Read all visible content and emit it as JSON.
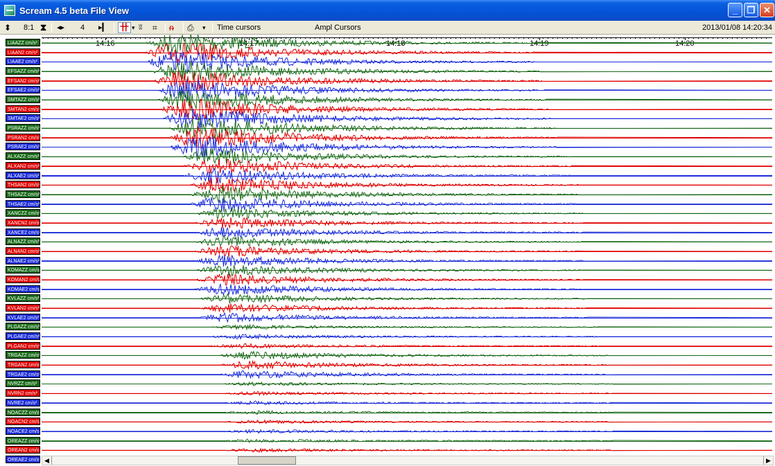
{
  "window": {
    "title": "Scream 4.5 beta File View"
  },
  "toolbar": {
    "zoom_value": "8:1",
    "step_value": "4",
    "time_cursors_label": "Time cursors",
    "ampl_cursors_label": "Ampl Cursors",
    "timestamp": "2013/01/08 14:20:34"
  },
  "time_axis": {
    "ticks": [
      "14:16",
      "14:17",
      "14:18",
      "14:19",
      "14:20"
    ]
  },
  "channels": [
    {
      "label": "LIAAZZ cm/s²",
      "color": "#1a6b1a"
    },
    {
      "label": "LIAAN2 cm/s²",
      "color": "#e00000"
    },
    {
      "label": "LIAAE2 cm/s²",
      "color": "#1a2cd8"
    },
    {
      "label": "EFSAZZ cm/s²",
      "color": "#1a6b1a"
    },
    {
      "label": "EFSAN2 cm/s²",
      "color": "#e00000"
    },
    {
      "label": "EFSAE2 cm/s²",
      "color": "#1a2cd8"
    },
    {
      "label": "SMTAZZ cm/s²",
      "color": "#1a6b1a"
    },
    {
      "label": "SMTAN2 cm/s²",
      "color": "#e00000"
    },
    {
      "label": "SMTAE2 cm/s²",
      "color": "#1a2cd8"
    },
    {
      "label": "PSRAZZ cm/s²",
      "color": "#1a6b1a"
    },
    {
      "label": "PSRAN2 cm/s²",
      "color": "#e00000"
    },
    {
      "label": "PSRAE2 cm/s²",
      "color": "#1a2cd8"
    },
    {
      "label": "ALXAZZ cm/s²",
      "color": "#1a6b1a"
    },
    {
      "label": "ALXAN2 cm/s²",
      "color": "#e00000"
    },
    {
      "label": "ALXAE2 cm/s²",
      "color": "#1a2cd8"
    },
    {
      "label": "THSAN2 cm/s²",
      "color": "#e00000"
    },
    {
      "label": "THSAZZ cm/s²",
      "color": "#1a6b1a"
    },
    {
      "label": "THSAE2 cm/s²",
      "color": "#1a2cd8"
    },
    {
      "label": "XANCZZ cm/s²",
      "color": "#1a6b1a"
    },
    {
      "label": "XANCN2 cm/s²",
      "color": "#e00000"
    },
    {
      "label": "XANCE2 cm/s²",
      "color": "#1a2cd8"
    },
    {
      "label": "ALNAZZ cm/s²",
      "color": "#1a6b1a"
    },
    {
      "label": "ALNAN2 cm/s²",
      "color": "#e00000"
    },
    {
      "label": "ALNAE2 cm/s²",
      "color": "#1a2cd8"
    },
    {
      "label": "KOMAZZ cm/s²",
      "color": "#1a6b1a"
    },
    {
      "label": "KOMAN2 cm/s²",
      "color": "#e00000"
    },
    {
      "label": "KOMAE2 cm/s²",
      "color": "#1a2cd8"
    },
    {
      "label": "KVLAZZ cm/s²",
      "color": "#1a6b1a"
    },
    {
      "label": "KVLAN2 cm/s²",
      "color": "#e00000"
    },
    {
      "label": "KVLAE2 cm/s²",
      "color": "#1a2cd8"
    },
    {
      "label": "PLGAZZ cm/s²",
      "color": "#1a6b1a"
    },
    {
      "label": "PLGAE2 cm/s²",
      "color": "#1a2cd8"
    },
    {
      "label": "PLGAN2 cm/s²",
      "color": "#e00000"
    },
    {
      "label": "TRGAZZ cm/s²",
      "color": "#1a6b1a"
    },
    {
      "label": "TRGAN2 cm/s²",
      "color": "#e00000"
    },
    {
      "label": "TRGAE2 cm/s²",
      "color": "#1a2cd8"
    },
    {
      "label": "NVRZZ cm/s²",
      "color": "#1a6b1a"
    },
    {
      "label": "NVRN2 cm/s²",
      "color": "#e00000"
    },
    {
      "label": "NVRE2 cm/s²",
      "color": "#1a2cd8"
    },
    {
      "label": "NOACZZ cm/s²",
      "color": "#1a6b1a"
    },
    {
      "label": "NOACN2 cm/s²",
      "color": "#e00000"
    },
    {
      "label": "NOACE2 cm/s²",
      "color": "#1a2cd8"
    },
    {
      "label": "OREAZZ cm/s²",
      "color": "#1a6b1a"
    },
    {
      "label": "OREAN2 cm/s²",
      "color": "#e00000"
    },
    {
      "label": "OREAE2 cm/s²",
      "color": "#1a2cd8"
    }
  ]
}
